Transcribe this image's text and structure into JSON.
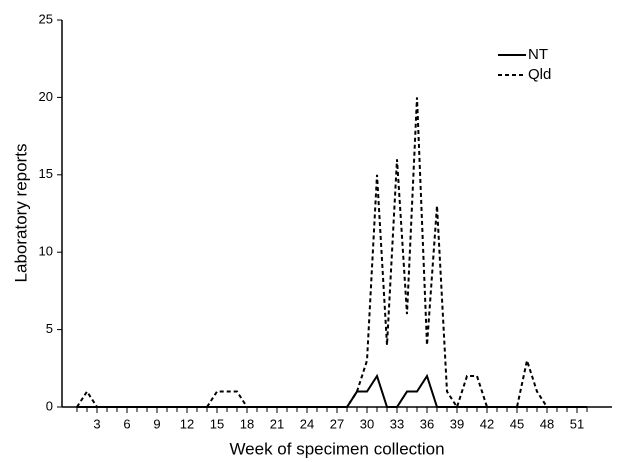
{
  "chart_data": {
    "type": "line",
    "x_label": "Week of specimen collection",
    "y_label": "Laboratory reports",
    "x": [
      1,
      2,
      3,
      4,
      5,
      6,
      7,
      8,
      9,
      10,
      11,
      12,
      13,
      14,
      15,
      16,
      17,
      18,
      19,
      20,
      21,
      22,
      23,
      24,
      25,
      26,
      27,
      28,
      29,
      30,
      31,
      32,
      33,
      34,
      35,
      36,
      37,
      38,
      39,
      40,
      41,
      42,
      43,
      44,
      45,
      46,
      47,
      48,
      49,
      50,
      51,
      52
    ],
    "series": [
      {
        "name": "NT",
        "color": "#000000",
        "dash": "solid",
        "values": [
          0,
          0,
          0,
          0,
          0,
          0,
          0,
          0,
          0,
          0,
          0,
          0,
          0,
          0,
          0,
          0,
          0,
          0,
          0,
          0,
          0,
          0,
          0,
          0,
          0,
          0,
          0,
          0,
          1,
          1,
          2,
          0,
          0,
          1,
          1,
          2,
          0,
          0,
          0,
          0,
          0,
          0,
          0,
          0,
          0,
          0,
          0,
          0,
          0,
          0,
          0,
          0
        ]
      },
      {
        "name": "Qld",
        "color": "#000000",
        "dash": "dashed",
        "values": [
          0,
          1,
          0,
          0,
          0,
          0,
          0,
          0,
          0,
          0,
          0,
          0,
          0,
          0,
          1,
          1,
          1,
          0,
          0,
          0,
          0,
          0,
          0,
          0,
          0,
          0,
          0,
          0,
          1,
          3,
          15,
          4,
          16,
          6,
          20,
          4,
          13,
          1,
          0,
          2,
          2,
          0,
          0,
          0,
          0,
          3,
          1,
          0,
          0,
          0,
          0,
          0
        ]
      }
    ],
    "xlim": [
      -0.5,
      54.5
    ],
    "xticks": [
      3,
      6,
      9,
      12,
      15,
      18,
      21,
      24,
      27,
      30,
      33,
      36,
      39,
      42,
      45,
      48,
      51
    ],
    "ylim": [
      0,
      25
    ],
    "yticks": [
      0,
      5,
      10,
      15,
      20,
      25
    ],
    "legend": "upper-right"
  }
}
